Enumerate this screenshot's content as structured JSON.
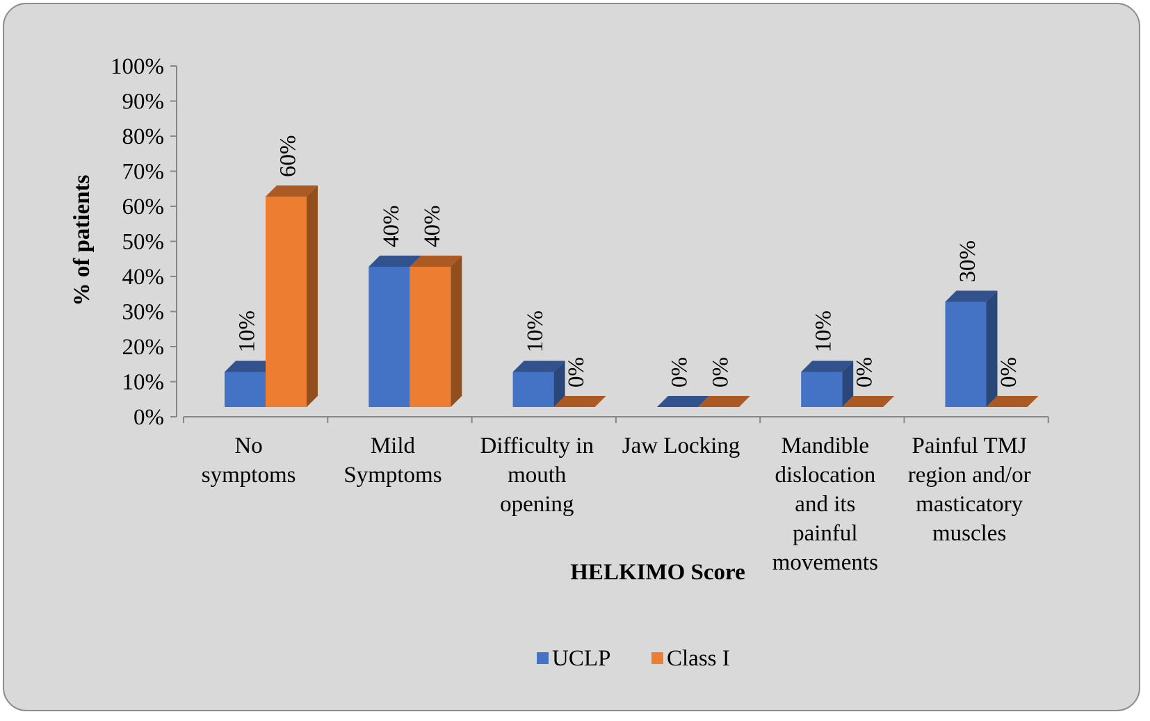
{
  "chart_data": {
    "type": "bar",
    "style": "3d-clustered-column",
    "categories": [
      [
        "No",
        "symptoms"
      ],
      [
        "Mild",
        "Symptoms"
      ],
      [
        "Difficulty in",
        "mouth",
        "opening"
      ],
      [
        "Jaw Locking"
      ],
      [
        "Mandible",
        "dislocation",
        "and its",
        "painful",
        "movements"
      ],
      [
        "Painful TMJ",
        "region and/or",
        "masticatory",
        "muscles"
      ]
    ],
    "series": [
      {
        "name": "UCLP",
        "color": "#4472c4",
        "values": [
          10,
          40,
          10,
          0,
          10,
          30
        ],
        "labels": [
          "10%",
          "40%",
          "10%",
          "0%",
          "10%",
          "30%"
        ]
      },
      {
        "name": "Class I",
        "color": "#ed7d31",
        "values": [
          60,
          40,
          0,
          0,
          0,
          0
        ],
        "labels": [
          "60%",
          "40%",
          "0%",
          "0%",
          "0%",
          "0%"
        ]
      }
    ],
    "xlabel": "HELKIMO Score",
    "ylabel": "% of patients",
    "ylim": [
      0,
      100
    ],
    "yticks": [
      "0%",
      "10%",
      "20%",
      "30%",
      "40%",
      "50%",
      "60%",
      "70%",
      "80%",
      "90%",
      "100%"
    ],
    "legend_position": "bottom",
    "grid": false
  }
}
